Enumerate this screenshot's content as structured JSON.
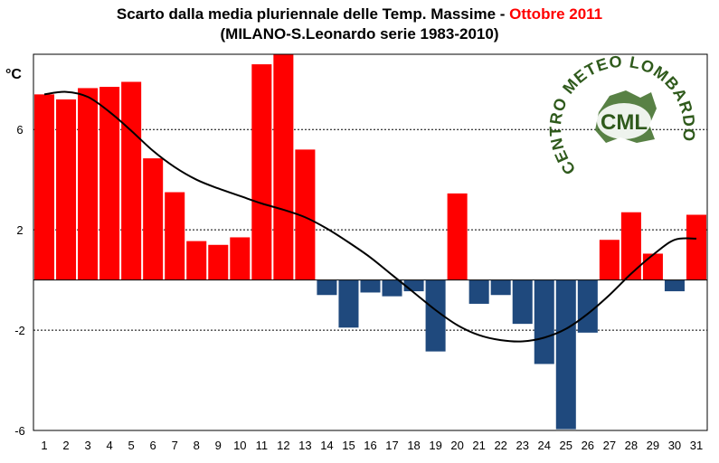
{
  "chart_data": {
    "type": "bar",
    "title_main": "Scarto dalla media pluriennale delle Temp. Massime - ",
    "title_highlight": "Ottobre 2011",
    "subtitle": "(MILANO-S.Leonardo serie 1983-2010)",
    "ylabel": "°C",
    "ylim": [
      -6,
      9
    ],
    "yticks": [
      6,
      2,
      -2,
      -6
    ],
    "categories": [
      "1",
      "2",
      "3",
      "4",
      "5",
      "6",
      "7",
      "8",
      "9",
      "10",
      "11",
      "12",
      "13",
      "14",
      "15",
      "16",
      "17",
      "18",
      "19",
      "20",
      "21",
      "22",
      "23",
      "24",
      "25",
      "26",
      "27",
      "28",
      "29",
      "30",
      "31"
    ],
    "values": [
      7.4,
      7.2,
      7.65,
      7.7,
      7.9,
      4.85,
      3.5,
      1.55,
      1.4,
      1.7,
      8.6,
      9.0,
      5.2,
      -0.6,
      -1.9,
      -0.5,
      -0.65,
      -0.45,
      -2.85,
      3.45,
      -0.95,
      -0.6,
      -1.75,
      -3.35,
      -5.95,
      -2.1,
      1.6,
      2.7,
      1.05,
      -0.45,
      2.6
    ],
    "positive_color": "#ff0000",
    "negative_color": "#1f497d",
    "trend": [
      7.4,
      7.5,
      7.3,
      6.7,
      5.95,
      5.15,
      4.5,
      4.0,
      3.65,
      3.35,
      3.05,
      2.8,
      2.5,
      2.05,
      1.5,
      0.9,
      0.2,
      -0.5,
      -1.2,
      -1.8,
      -2.2,
      -2.4,
      -2.45,
      -2.3,
      -1.95,
      -1.35,
      -0.6,
      0.25,
      1.0,
      1.6,
      1.65
    ],
    "grid": "dotted",
    "legend": "none"
  },
  "logo": {
    "arc_text": "CENTRO METEO LOMBARDO",
    "center_text": "CML"
  }
}
